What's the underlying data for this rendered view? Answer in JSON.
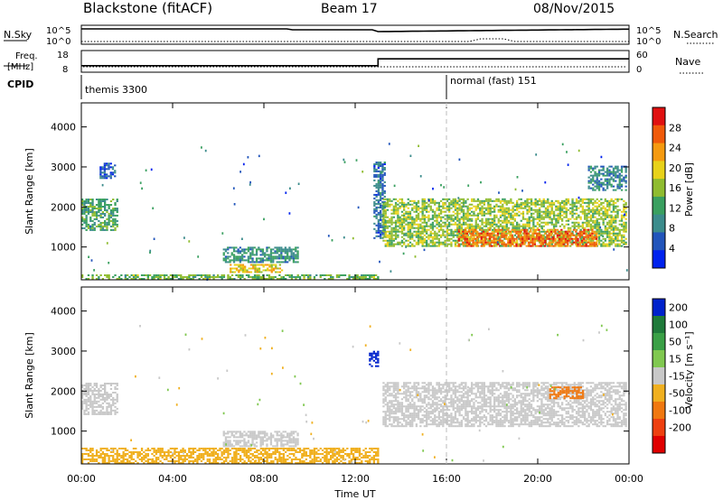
{
  "header": {
    "title": "Blackstone (fitACF)",
    "beam": "Beam 17",
    "date": "08/Nov/2015"
  },
  "top_panels": {
    "nsky_label": "N.Sky",
    "nsearch_label": "N.Search",
    "nsky_ticks": [
      "10^5",
      "10^0"
    ],
    "nsearch_ticks": [
      "10^5",
      "10^0"
    ],
    "freq_label_1": "Freq.",
    "freq_label_2": "[MHz]",
    "freq_ticks": [
      "18",
      "8"
    ],
    "nave_label": "Nave",
    "nave_ticks": [
      "60",
      "0"
    ],
    "cpid_label": "CPID",
    "cpid_segments": [
      {
        "label": "themis 3300",
        "start_hour": 0
      },
      {
        "label": "normal (fast) 151",
        "start_hour": 16
      }
    ],
    "freq_mhz": [
      {
        "from": 0,
        "to": 13,
        "value": 10.6
      },
      {
        "from": 13,
        "to": 24,
        "value": 14.4
      }
    ]
  },
  "chart_data": [
    {
      "type": "heatmap",
      "name": "power",
      "ylabel": "Slant Range [km]",
      "xlabel": "",
      "yticks": [
        "1000",
        "2000",
        "3000",
        "4000"
      ],
      "ylim": [
        180,
        4600
      ],
      "xlim": [
        0,
        24
      ],
      "colorbar_label": "Power [dB]",
      "colorbar_ticks": [
        "4",
        "8",
        "12",
        "16",
        "20",
        "24",
        "28"
      ],
      "colorbar_range": [
        0,
        32
      ],
      "regions": [
        {
          "hour": [
            0.0,
            1.6
          ],
          "range": [
            1400,
            2200
          ],
          "level": 12
        },
        {
          "hour": [
            0.8,
            1.5
          ],
          "range": [
            2700,
            3100
          ],
          "level": 5
        },
        {
          "hour": [
            6.2,
            9.5
          ],
          "range": [
            600,
            1000
          ],
          "level": 10
        },
        {
          "hour": [
            6.5,
            8.8
          ],
          "range": [
            350,
            550
          ],
          "level": 20
        },
        {
          "hour": [
            0.0,
            13.0
          ],
          "range": [
            180,
            300
          ],
          "level": 14
        },
        {
          "hour": [
            12.8,
            13.3
          ],
          "range": [
            1200,
            3100
          ],
          "level": 7
        },
        {
          "hour": [
            13.2,
            23.9
          ],
          "range": [
            1000,
            2200
          ],
          "level": 16
        },
        {
          "hour": [
            16.5,
            22.6
          ],
          "range": [
            1000,
            1450
          ],
          "level": 26
        },
        {
          "hour": [
            22.2,
            23.9
          ],
          "range": [
            2400,
            3000
          ],
          "level": 9
        }
      ]
    },
    {
      "type": "heatmap",
      "name": "velocity",
      "ylabel": "Slant Range [km]",
      "xlabel": "Time UT",
      "yticks": [
        "1000",
        "2000",
        "3000",
        "4000"
      ],
      "ylim": [
        180,
        4600
      ],
      "xlim": [
        0,
        24
      ],
      "xticks": [
        "00:00",
        "04:00",
        "08:00",
        "12:00",
        "16:00",
        "20:00",
        "00:00"
      ],
      "colorbar_label": "Velocity [m s⁻¹]",
      "colorbar_ticks": [
        "200",
        "100",
        "50",
        "15",
        "-15",
        "-50",
        "-100",
        "-200"
      ],
      "regions": [
        {
          "hour": [
            0.0,
            1.6
          ],
          "range": [
            1400,
            2200
          ],
          "velocity": 0
        },
        {
          "hour": [
            6.2,
            9.5
          ],
          "range": [
            600,
            1000
          ],
          "velocity": 0
        },
        {
          "hour": [
            0.0,
            13.0
          ],
          "range": [
            180,
            550
          ],
          "velocity": -30
        },
        {
          "hour": [
            12.6,
            13.0
          ],
          "range": [
            2600,
            3000
          ],
          "velocity": 180
        },
        {
          "hour": [
            13.2,
            23.9
          ],
          "range": [
            1100,
            2200
          ],
          "velocity": 0
        },
        {
          "hour": [
            20.5,
            22.0
          ],
          "range": [
            1800,
            2100
          ],
          "velocity": -80
        }
      ]
    }
  ]
}
